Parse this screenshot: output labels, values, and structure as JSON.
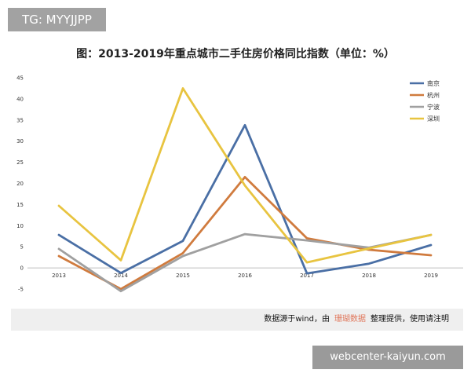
{
  "watermark_top": "TG: MYYJJPP",
  "watermark_bottom": "webcenter-kaiyun.com",
  "source": {
    "prefix": "数据源于wind，由",
    "highlight": "珊瑚数据",
    "suffix": "整理提供，使用请注明"
  },
  "chart_data": {
    "type": "line",
    "title": "图：2013-2019年重点城市二手住房价格同比指数（单位：%）",
    "x": [
      "2013",
      "2014",
      "2015",
      "2016",
      "2017",
      "2018",
      "2019"
    ],
    "ylim": [
      -5,
      45
    ],
    "yticks": [
      -5,
      0,
      5,
      10,
      15,
      20,
      25,
      30,
      35,
      40,
      45
    ],
    "grid": false,
    "legend_position": "top-right",
    "series": [
      {
        "name": "南京",
        "color": "#4a6fa5",
        "values": [
          7.8,
          -1.2,
          6.4,
          33.8,
          -1.3,
          1.0,
          5.4
        ]
      },
      {
        "name": "杭州",
        "color": "#d07b3e",
        "values": [
          2.8,
          -5.0,
          3.5,
          21.5,
          7.0,
          4.3,
          3.0
        ]
      },
      {
        "name": "宁波",
        "color": "#a0a0a0",
        "values": [
          4.5,
          -5.5,
          2.8,
          8.0,
          6.5,
          4.8,
          7.8
        ]
      },
      {
        "name": "深圳",
        "color": "#e8c440",
        "values": [
          14.7,
          1.8,
          42.5,
          19.5,
          1.3,
          4.6,
          7.8
        ]
      }
    ]
  }
}
